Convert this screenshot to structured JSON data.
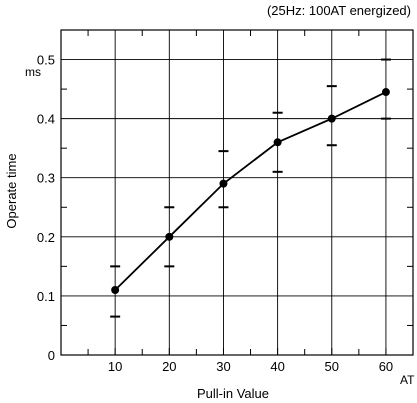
{
  "chart_data": {
    "type": "line",
    "title": "(25Hz: 100AT energized)",
    "xlabel": "Pull-in Value",
    "xunit": "AT",
    "ylabel": "Operate time",
    "yunit": "ms",
    "xlim": [
      0,
      65
    ],
    "ylim": [
      0,
      0.55
    ],
    "xticks": [
      10,
      20,
      30,
      40,
      50,
      60
    ],
    "yticks": [
      0,
      0.1,
      0.2,
      0.3,
      0.4,
      0.5
    ],
    "xtick_labels": [
      "10",
      "20",
      "30",
      "40",
      "50",
      "60"
    ],
    "ytick_labels": [
      "0",
      "0.1",
      "0.2",
      "0.3",
      "0.4",
      "0.5"
    ],
    "grid": true,
    "series": [
      {
        "x": [
          10,
          20,
          30,
          40,
          50,
          60
        ],
        "y": [
          0.11,
          0.2,
          0.29,
          0.36,
          0.4,
          0.445
        ],
        "y_max": [
          0.15,
          0.25,
          0.345,
          0.41,
          0.455,
          0.5
        ],
        "y_min": [
          0.065,
          0.15,
          0.25,
          0.31,
          0.355,
          0.4
        ]
      }
    ]
  }
}
